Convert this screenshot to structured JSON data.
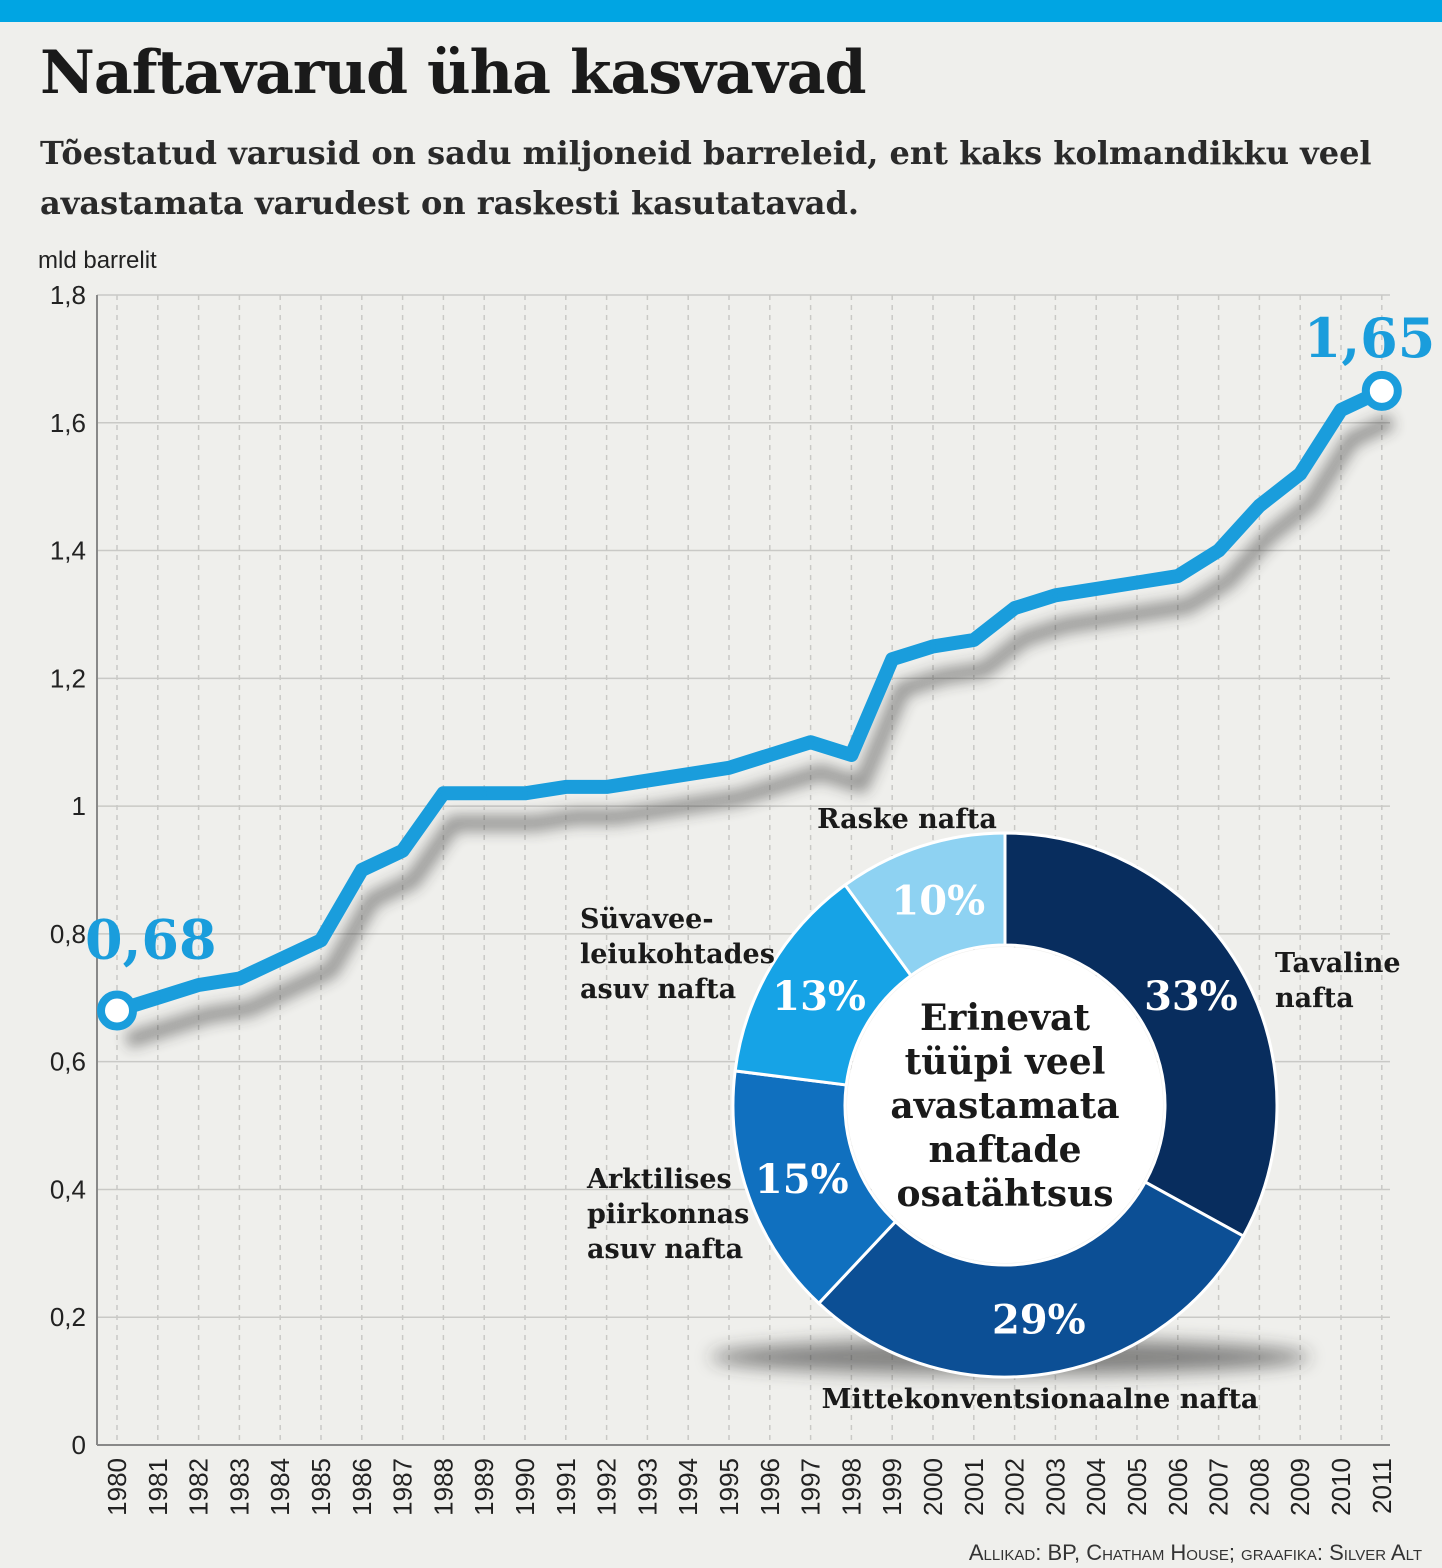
{
  "header": {
    "title": "Naftavarud üha kasvavad",
    "subtitle": "Tõestatud varusid on sadu miljoneid barreleid, ent kaks kolmandikku veel avastamata varudest on raskesti kasutatavad."
  },
  "colors": {
    "line": "#1a9ddc",
    "grid": "#c9c9c6",
    "accent": "#00a5e3",
    "text": "#1a1a1a"
  },
  "chart_data": [
    {
      "type": "line",
      "ylabel": "mld barrelit",
      "xlabel": "",
      "ylim": [
        0,
        1.8
      ],
      "y_ticks": [
        0,
        0.2,
        0.4,
        0.6,
        0.8,
        1,
        1.2,
        1.4,
        1.6,
        1.8
      ],
      "y_tick_labels": [
        "0",
        "0,2",
        "0,4",
        "0,6",
        "0,8",
        "1",
        "1,2",
        "1,4",
        "1,6",
        "1,8"
      ],
      "x": [
        "1980",
        "1981",
        "1982",
        "1983",
        "1984",
        "1985",
        "1986",
        "1987",
        "1988",
        "1989",
        "1990",
        "1991",
        "1992",
        "1993",
        "1994",
        "1995",
        "1996",
        "1997",
        "1998",
        "1999",
        "2000",
        "2001",
        "2002",
        "2003",
        "2004",
        "2005",
        "2006",
        "2007",
        "2008",
        "2009",
        "2010",
        "2011"
      ],
      "values": [
        0.68,
        0.7,
        0.72,
        0.73,
        0.76,
        0.79,
        0.9,
        0.93,
        1.02,
        1.02,
        1.02,
        1.03,
        1.03,
        1.04,
        1.05,
        1.06,
        1.08,
        1.1,
        1.08,
        1.23,
        1.25,
        1.26,
        1.31,
        1.33,
        1.34,
        1.35,
        1.36,
        1.4,
        1.47,
        1.52,
        1.62,
        1.65
      ],
      "annotations": [
        {
          "label": "0,68",
          "year": "1980"
        },
        {
          "label": "1,65",
          "year": "2011"
        }
      ],
      "grid": true
    },
    {
      "type": "pie",
      "center_label": [
        "Erinevat",
        "tüüpi veel",
        "avastamata",
        "naftade",
        "osatähtsus"
      ],
      "slices": [
        {
          "name": "Tavaline nafta",
          "value": 33,
          "label": "33%",
          "color": "#082d5e"
        },
        {
          "name": "Mittekonventsionaalne nafta",
          "value": 29,
          "label": "29%",
          "color": "#0c4f95"
        },
        {
          "name": "Arktilises piirkonnas asuv nafta",
          "value": 15,
          "label": "15%",
          "color": "#1070bf"
        },
        {
          "name": "Süvavee-leiukohtades asuv nafta",
          "value": 13,
          "label": "13%",
          "color": "#16a3e6"
        },
        {
          "name": "Raske nafta",
          "value": 10,
          "label": "10%",
          "color": "#8ed2f2"
        }
      ],
      "legend_lines": [
        [
          "Tavaline",
          "nafta"
        ],
        [
          "Mittekonventsionaalne nafta"
        ],
        [
          "Arktilises",
          "piirkonnas",
          "asuv nafta"
        ],
        [
          "Süvavee-",
          "leiukohtades",
          "asuv nafta"
        ],
        [
          "Raske nafta"
        ]
      ]
    }
  ],
  "source": "Allikad: BP, Chatham House; graafika: Silver Alt"
}
